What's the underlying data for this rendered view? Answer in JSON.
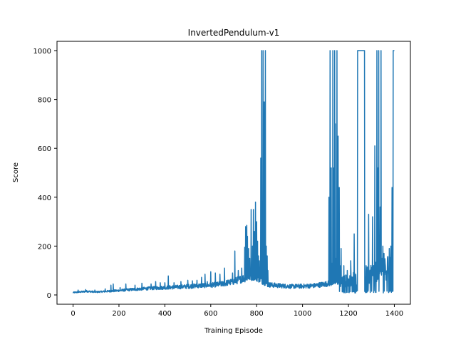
{
  "chart_data": {
    "type": "line",
    "title": "InvertedPendulum-v1",
    "xlabel": "Training Episode",
    "ylabel": "Score",
    "xlim": [
      -70,
      1470
    ],
    "ylim": [
      -38,
      1038
    ],
    "xticks": [
      0,
      200,
      400,
      600,
      800,
      1000,
      1200,
      1400
    ],
    "yticks": [
      0,
      200,
      400,
      600,
      800,
      1000
    ],
    "grid": false,
    "series": [
      {
        "color": "#1f77b4",
        "description": "Score per training episode for episodes 0 to about 1400. Low noisy scores (roughly 5 to 40) for the first ~650 episodes, rising to spikes of ~180-350 near 700-810, first reaching the 1000 cap around episodes 820-840, collapsing to ~30-45 from about 850 to 1110, then repeatedly oscillating between near 5 and the 1000 cap from about 1115 to 1400 (including a sustained 1000 plateau around 1235-1270).",
        "anchors": [
          [
            0,
            10
          ],
          [
            30,
            12
          ],
          [
            60,
            15
          ],
          [
            100,
            12
          ],
          [
            150,
            15
          ],
          [
            200,
            18
          ],
          [
            250,
            22
          ],
          [
            300,
            25
          ],
          [
            350,
            28
          ],
          [
            400,
            30
          ],
          [
            450,
            32
          ],
          [
            500,
            35
          ],
          [
            550,
            38
          ],
          [
            600,
            40
          ],
          [
            650,
            45
          ],
          [
            700,
            55
          ],
          [
            750,
            70
          ],
          [
            790,
            80
          ],
          [
            850,
            42
          ],
          [
            900,
            38
          ],
          [
            950,
            35
          ],
          [
            1000,
            36
          ],
          [
            1050,
            38
          ],
          [
            1100,
            45
          ],
          [
            1200,
            60
          ],
          [
            1400,
            120
          ]
        ],
        "events": [
          [
            22,
            20
          ],
          [
            55,
            22
          ],
          [
            95,
            20
          ],
          [
            140,
            25
          ],
          [
            165,
            40
          ],
          [
            175,
            45
          ],
          [
            205,
            30
          ],
          [
            230,
            45
          ],
          [
            270,
            40
          ],
          [
            300,
            48
          ],
          [
            340,
            45
          ],
          [
            360,
            55
          ],
          [
            380,
            50
          ],
          [
            400,
            50
          ],
          [
            415,
            78
          ],
          [
            440,
            50
          ],
          [
            470,
            55
          ],
          [
            500,
            60
          ],
          [
            520,
            58
          ],
          [
            540,
            60
          ],
          [
            560,
            72
          ],
          [
            575,
            85
          ],
          [
            585,
            55
          ],
          [
            600,
            95
          ],
          [
            620,
            90
          ],
          [
            640,
            85
          ],
          [
            660,
            110
          ],
          [
            678,
            60
          ],
          [
            695,
            90
          ],
          [
            705,
            180
          ],
          [
            720,
            100
          ],
          [
            735,
            110
          ],
          [
            748,
            195
          ],
          [
            752,
            280
          ],
          [
            757,
            285
          ],
          [
            760,
            240
          ],
          [
            765,
            190
          ],
          [
            770,
            150
          ],
          [
            776,
            350
          ],
          [
            782,
            200
          ],
          [
            786,
            350
          ],
          [
            790,
            260
          ],
          [
            795,
            380
          ],
          [
            800,
            300
          ],
          [
            804,
            220
          ],
          [
            808,
            160
          ],
          [
            812,
            140
          ],
          [
            818,
            560
          ],
          [
            822,
            1000
          ],
          [
            828,
            1000
          ],
          [
            833,
            790
          ],
          [
            838,
            1000
          ],
          [
            842,
            200
          ],
          [
            846,
            160
          ],
          [
            849,
            100
          ],
          [
            1115,
            400
          ],
          [
            1120,
            1000
          ],
          [
            1125,
            520
          ],
          [
            1128,
            130
          ],
          [
            1132,
            1000
          ],
          [
            1135,
            520
          ],
          [
            1140,
            1000
          ],
          [
            1143,
            700
          ],
          [
            1146,
            150
          ],
          [
            1150,
            1000
          ],
          [
            1155,
            650
          ],
          [
            1160,
            440
          ],
          [
            1163,
            120
          ],
          [
            1168,
            190
          ],
          [
            1180,
            120
          ],
          [
            1195,
            100
          ],
          [
            1210,
            140
          ],
          [
            1225,
            250
          ],
          [
            1240,
            1000
          ],
          [
            1250,
            1000
          ],
          [
            1260,
            1000
          ],
          [
            1270,
            1000
          ],
          [
            1280,
            10
          ],
          [
            1288,
            330
          ],
          [
            1295,
            10
          ],
          [
            1305,
            320
          ],
          [
            1310,
            10
          ],
          [
            1315,
            610
          ],
          [
            1320,
            10
          ],
          [
            1324,
            1000
          ],
          [
            1328,
            520
          ],
          [
            1332,
            1000
          ],
          [
            1335,
            240
          ],
          [
            1338,
            360
          ],
          [
            1342,
            1000
          ],
          [
            1345,
            150
          ],
          [
            1350,
            200
          ],
          [
            1355,
            170
          ],
          [
            1360,
            130
          ],
          [
            1370,
            150
          ],
          [
            1378,
            190
          ],
          [
            1385,
            200
          ],
          [
            1390,
            440
          ],
          [
            1395,
            1000
          ],
          [
            1400,
            1000
          ]
        ]
      }
    ]
  }
}
